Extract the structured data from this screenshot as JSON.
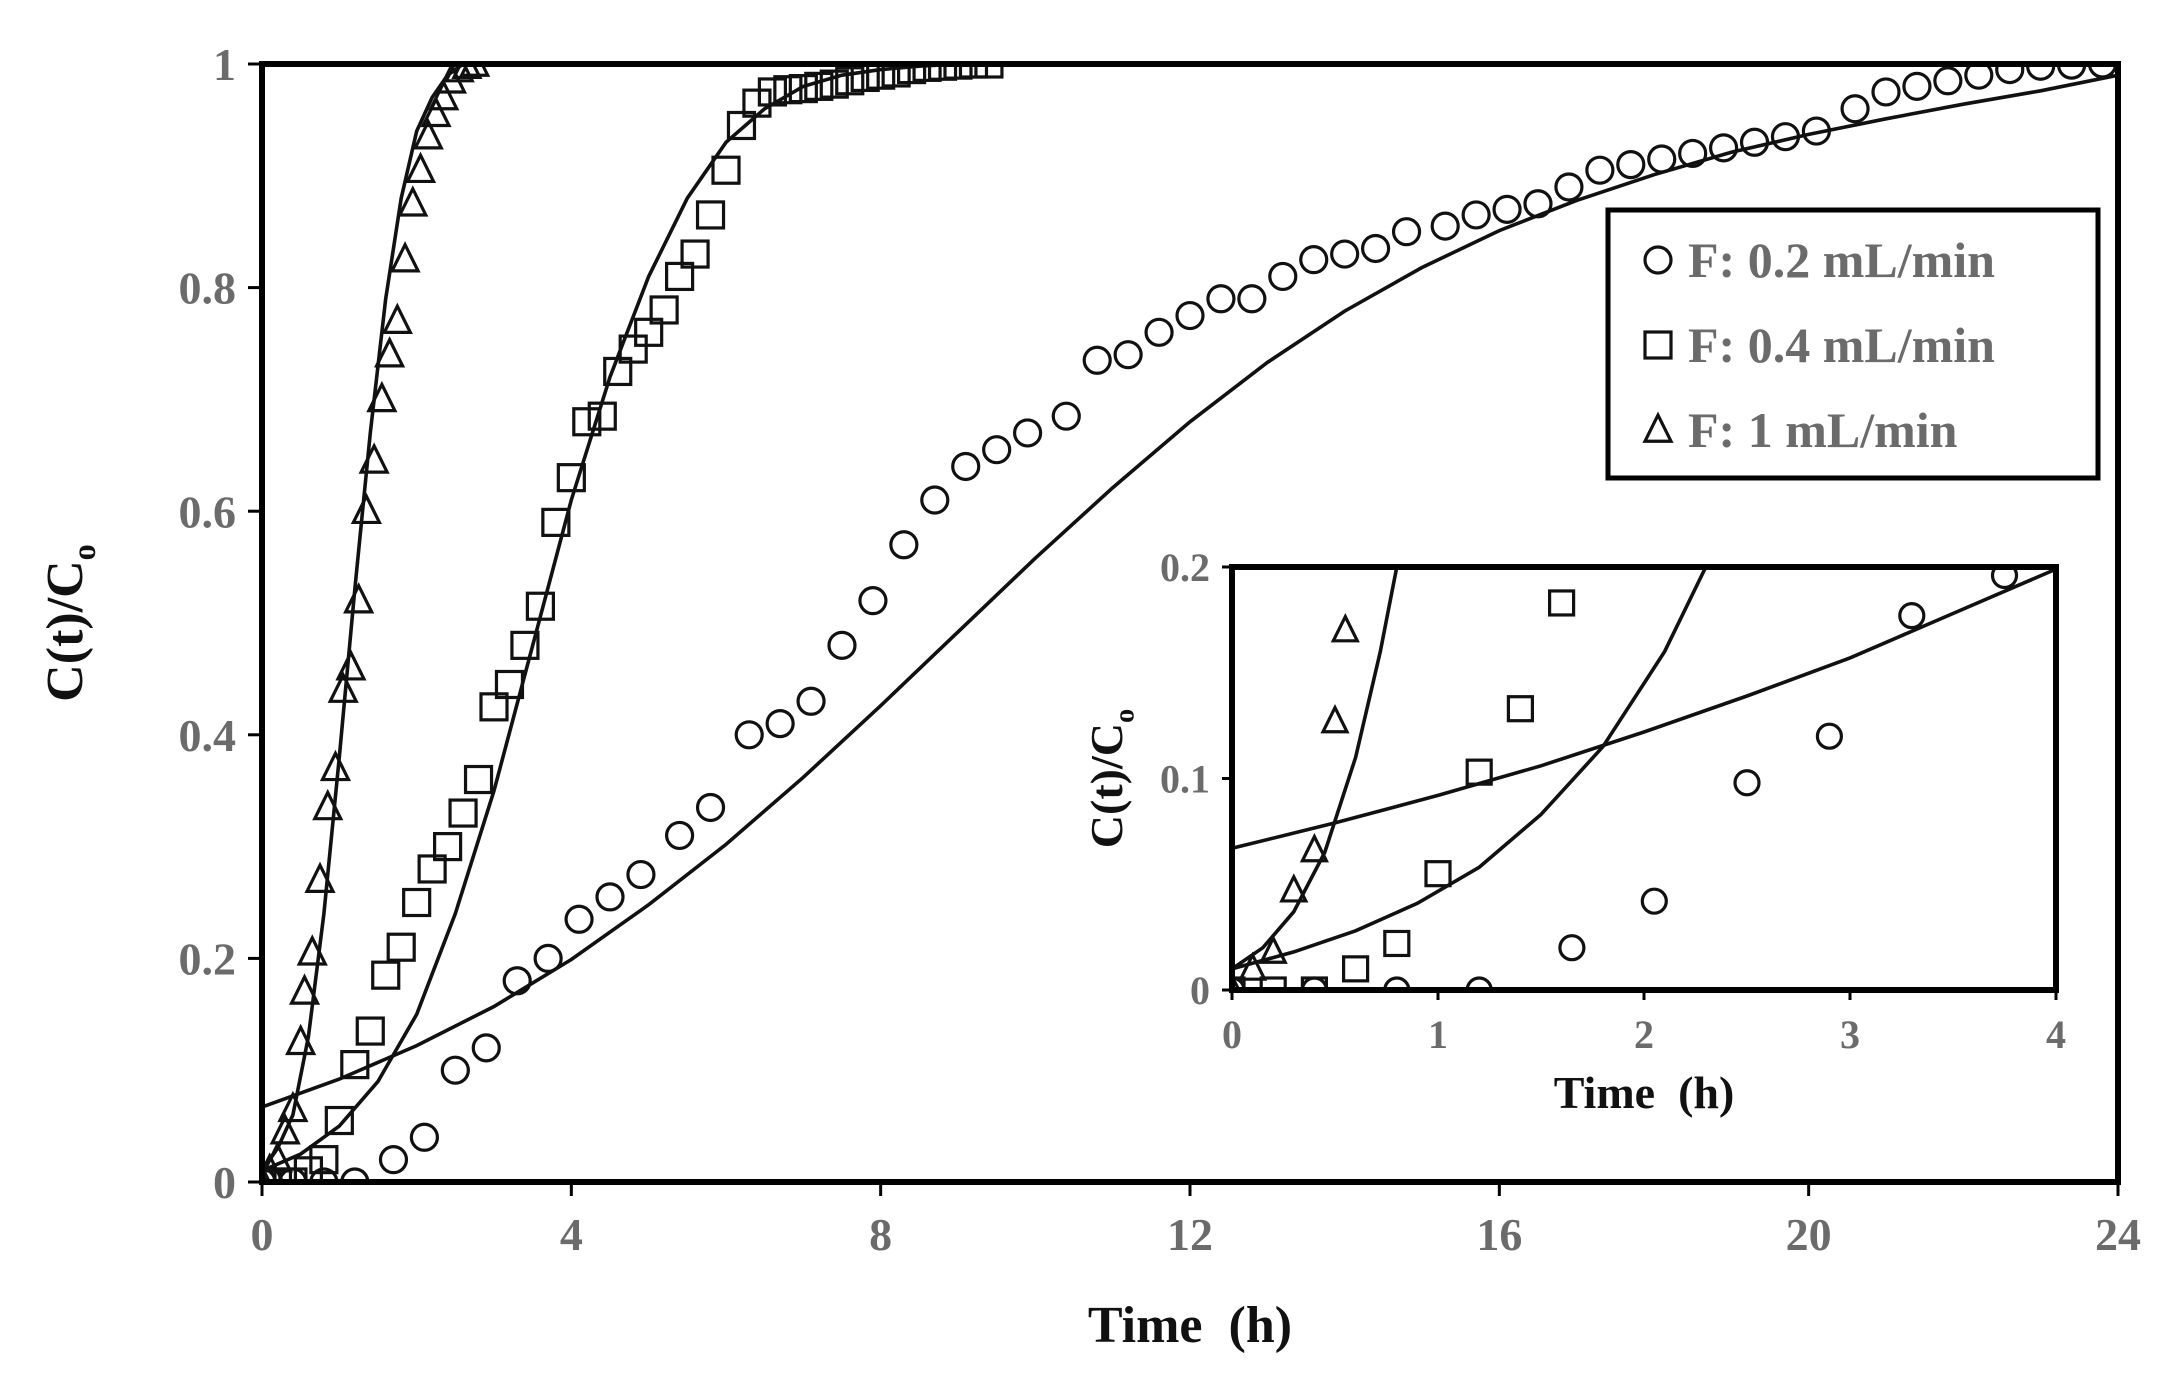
{
  "chart_data": [
    {
      "type": "scatter",
      "title": "",
      "xlabel": "Time  (h)",
      "ylabel": "C(t)/C",
      "ylabel_subscript": "o",
      "xlim": [
        0,
        24
      ],
      "ylim": [
        0,
        1
      ],
      "x_ticks": [
        0,
        4,
        8,
        12,
        16,
        20,
        24
      ],
      "x_tick_labels": [
        "0",
        "4",
        "8",
        "12",
        "16",
        "20",
        "24"
      ],
      "y_ticks": [
        0,
        0.2,
        0.4,
        0.6,
        0.8,
        1
      ],
      "y_tick_labels": [
        "0",
        "0.2",
        "0.4",
        "0.6",
        "0.8",
        "1"
      ],
      "legend_position": "top-right",
      "series": [
        {
          "name": "F: 0.2 mL/min",
          "marker": "circle",
          "x": [
            0,
            0.4,
            0.8,
            1.2,
            1.7,
            2.1,
            2.5,
            2.9,
            3.3,
            3.7,
            4.1,
            4.5,
            4.9,
            5.4,
            5.8,
            6.3,
            6.7,
            7.1,
            7.5,
            7.9,
            8.3,
            8.7,
            9.1,
            9.5,
            9.9,
            10.4,
            10.8,
            11.2,
            11.6,
            12.0,
            12.4,
            12.8,
            13.2,
            13.6,
            14.0,
            14.4,
            14.8,
            15.3,
            15.7,
            16.1,
            16.5,
            16.9,
            17.3,
            17.7,
            18.1,
            18.5,
            18.9,
            19.3,
            19.7,
            20.1,
            20.6,
            21.0,
            21.4,
            21.8,
            22.2,
            22.6,
            23.0,
            23.4,
            23.8
          ],
          "y": [
            0,
            0,
            0,
            0,
            0.02,
            0.04,
            0.1,
            0.12,
            0.18,
            0.2,
            0.235,
            0.255,
            0.275,
            0.31,
            0.335,
            0.4,
            0.41,
            0.43,
            0.48,
            0.52,
            0.57,
            0.61,
            0.64,
            0.655,
            0.67,
            0.685,
            0.735,
            0.74,
            0.76,
            0.775,
            0.79,
            0.79,
            0.81,
            0.825,
            0.83,
            0.835,
            0.85,
            0.855,
            0.865,
            0.87,
            0.875,
            0.89,
            0.905,
            0.91,
            0.915,
            0.92,
            0.925,
            0.93,
            0.935,
            0.94,
            0.96,
            0.975,
            0.98,
            0.985,
            0.99,
            0.995,
            0.998,
            0.999,
            1.0
          ],
          "fit_x": [
            0,
            1,
            2,
            3,
            4,
            5,
            6,
            7,
            8,
            9,
            10,
            11,
            12,
            13,
            14,
            15,
            16,
            17,
            18,
            19,
            20,
            21,
            22,
            23,
            24
          ],
          "fit_y": [
            0.067,
            0.092,
            0.122,
            0.157,
            0.199,
            0.248,
            0.302,
            0.362,
            0.426,
            0.492,
            0.558,
            0.621,
            0.68,
            0.733,
            0.779,
            0.818,
            0.851,
            0.878,
            0.901,
            0.921,
            0.937,
            0.951,
            0.964,
            0.976,
            0.99
          ]
        },
        {
          "name": "F: 0.4 mL/min",
          "marker": "square",
          "x": [
            0,
            0.2,
            0.4,
            0.6,
            0.8,
            1.0,
            1.2,
            1.4,
            1.6,
            1.8,
            2.0,
            2.2,
            2.4,
            2.6,
            2.8,
            3.0,
            3.2,
            3.4,
            3.6,
            3.8,
            4.0,
            4.2,
            4.4,
            4.6,
            4.8,
            5.0,
            5.2,
            5.4,
            5.6,
            5.8,
            6.0,
            6.2,
            6.4,
            6.6,
            6.8,
            7.0,
            7.2,
            7.4,
            7.6,
            7.8,
            8.0,
            8.2,
            8.4,
            8.6,
            8.8,
            9.0,
            9.2,
            9.4
          ],
          "y": [
            0,
            0,
            0,
            0.01,
            0.02,
            0.055,
            0.105,
            0.135,
            0.185,
            0.21,
            0.25,
            0.28,
            0.3,
            0.33,
            0.36,
            0.425,
            0.445,
            0.48,
            0.515,
            0.59,
            0.63,
            0.68,
            0.685,
            0.725,
            0.745,
            0.76,
            0.78,
            0.81,
            0.83,
            0.865,
            0.905,
            0.945,
            0.965,
            0.975,
            0.977,
            0.978,
            0.98,
            0.982,
            0.985,
            0.988,
            0.99,
            0.992,
            0.995,
            0.997,
            0.998,
            0.999,
            1.0,
            1.0
          ],
          "fit_x": [
            0,
            0.5,
            1,
            1.5,
            2,
            2.5,
            3,
            3.5,
            4,
            4.5,
            5,
            5.5,
            6,
            6.5,
            7,
            7.5,
            8,
            8.5,
            9,
            9.5
          ],
          "fit_y": [
            0.01,
            0.025,
            0.05,
            0.09,
            0.15,
            0.24,
            0.35,
            0.48,
            0.61,
            0.72,
            0.81,
            0.88,
            0.93,
            0.96,
            0.98,
            0.99,
            0.995,
            0.998,
            1.0,
            1.0
          ]
        },
        {
          "name": "F: 1 mL/min",
          "marker": "triangle",
          "x": [
            0,
            0.1,
            0.2,
            0.3,
            0.4,
            0.5,
            0.55,
            0.65,
            0.75,
            0.85,
            0.95,
            1.05,
            1.15,
            1.25,
            1.35,
            1.45,
            1.55,
            1.65,
            1.75,
            1.85,
            1.95,
            2.05,
            2.15,
            2.25,
            2.35,
            2.45,
            2.55,
            2.65,
            2.75
          ],
          "y": [
            0,
            0.01,
            0.02,
            0.045,
            0.065,
            0.125,
            0.17,
            0.205,
            0.27,
            0.335,
            0.37,
            0.44,
            0.46,
            0.52,
            0.6,
            0.645,
            0.7,
            0.74,
            0.77,
            0.825,
            0.875,
            0.905,
            0.935,
            0.955,
            0.97,
            0.985,
            0.995,
            0.998,
            1.0
          ],
          "fit_x": [
            0,
            0.2,
            0.4,
            0.6,
            0.8,
            1.0,
            1.2,
            1.4,
            1.6,
            1.8,
            2.0,
            2.2,
            2.4,
            2.6,
            2.8
          ],
          "fit_y": [
            0.01,
            0.03,
            0.06,
            0.13,
            0.24,
            0.38,
            0.53,
            0.67,
            0.79,
            0.88,
            0.94,
            0.97,
            0.99,
            1.0,
            1.0
          ]
        }
      ]
    },
    {
      "type": "scatter",
      "title": "",
      "subtitle": "inset",
      "xlabel": "Time  (h)",
      "ylabel": "C(t)/C",
      "ylabel_subscript": "o",
      "xlim": [
        0,
        4
      ],
      "ylim": [
        0,
        0.2
      ],
      "x_ticks": [
        0,
        1,
        2,
        3,
        4
      ],
      "x_tick_labels": [
        "0",
        "1",
        "2",
        "3",
        "4"
      ],
      "y_ticks": [
        0,
        0.1,
        0.2
      ],
      "y_tick_labels": [
        "0",
        "0.1",
        "0.2"
      ],
      "series": [
        {
          "name": "F: 0.2 mL/min",
          "marker": "circle",
          "x": [
            0,
            0.4,
            0.8,
            1.2,
            1.65,
            2.05,
            2.5,
            2.9,
            3.3,
            3.75
          ],
          "y": [
            0,
            0,
            0,
            0,
            0.02,
            0.042,
            0.098,
            0.12,
            0.177,
            0.196
          ],
          "fit_x": [
            0,
            0.5,
            1,
            1.5,
            2,
            2.5,
            3,
            3.5,
            4
          ],
          "fit_y": [
            0.067,
            0.079,
            0.092,
            0.106,
            0.122,
            0.139,
            0.157,
            0.178,
            0.199
          ]
        },
        {
          "name": "F: 0.4 mL/min",
          "marker": "square",
          "x": [
            0,
            0.2,
            0.4,
            0.6,
            0.8,
            1.0,
            1.2,
            1.4,
            1.6
          ],
          "y": [
            0,
            0,
            0,
            0.01,
            0.022,
            0.055,
            0.103,
            0.133,
            0.183
          ],
          "fit_x": [
            0,
            0.3,
            0.6,
            0.9,
            1.2,
            1.5,
            1.8,
            2.1,
            2.3
          ],
          "fit_y": [
            0.01,
            0.018,
            0.028,
            0.041,
            0.058,
            0.083,
            0.115,
            0.16,
            0.2
          ]
        },
        {
          "name": "F: 1 mL/min",
          "marker": "triangle",
          "x": [
            0,
            0.1,
            0.2,
            0.3,
            0.4,
            0.5,
            0.55
          ],
          "y": [
            0,
            0.01,
            0.018,
            0.047,
            0.066,
            0.127,
            0.17
          ],
          "fit_x": [
            0,
            0.15,
            0.3,
            0.45,
            0.6,
            0.72,
            0.8
          ],
          "fit_y": [
            0.01,
            0.02,
            0.037,
            0.065,
            0.11,
            0.16,
            0.2
          ]
        }
      ]
    }
  ]
}
